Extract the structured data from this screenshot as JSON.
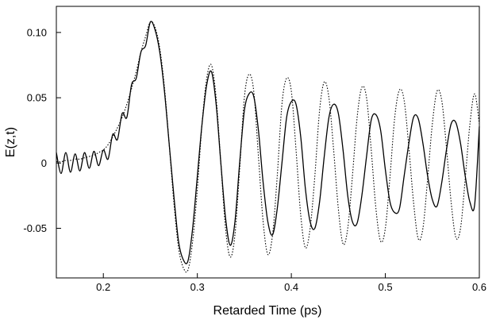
{
  "chart_data": {
    "type": "line",
    "title": "",
    "xlabel": "Retarded Time (ps)",
    "ylabel": "E(z,t)",
    "xlim": [
      0.15,
      0.6
    ],
    "ylim": [
      -0.088,
      0.12
    ],
    "grid": false,
    "legend": "none",
    "x_ticks": [
      {
        "value": 0.2,
        "label": "0.2"
      },
      {
        "value": 0.3,
        "label": "0.3"
      },
      {
        "value": 0.4,
        "label": "0.4"
      },
      {
        "value": 0.5,
        "label": "0.5"
      },
      {
        "value": 0.6,
        "label": "0.6"
      }
    ],
    "y_ticks": [
      {
        "value": 0.1,
        "label": "0.10"
      },
      {
        "value": 0.05,
        "label": "0.05"
      },
      {
        "value": 0,
        "label": "0"
      },
      {
        "value": -0.05,
        "label": "-0.05"
      }
    ],
    "series": [
      {
        "style": "solid",
        "color": "#000000",
        "x": [
          0.15,
          0.155,
          0.16,
          0.165,
          0.17,
          0.175,
          0.18,
          0.185,
          0.19,
          0.195,
          0.2,
          0.205,
          0.21,
          0.215,
          0.22,
          0.225,
          0.23,
          0.235,
          0.24,
          0.245,
          0.25,
          0.255,
          0.26,
          0.265,
          0.27,
          0.275,
          0.28,
          0.285,
          0.29,
          0.295,
          0.3,
          0.305,
          0.31,
          0.315,
          0.32,
          0.325,
          0.33,
          0.335,
          0.34,
          0.345,
          0.35,
          0.355,
          0.36,
          0.365,
          0.37,
          0.375,
          0.38,
          0.385,
          0.39,
          0.395,
          0.4,
          0.405,
          0.41,
          0.415,
          0.42,
          0.425,
          0.43,
          0.435,
          0.44,
          0.445,
          0.45,
          0.455,
          0.46,
          0.465,
          0.47,
          0.475,
          0.48,
          0.485,
          0.49,
          0.495,
          0.5,
          0.505,
          0.51,
          0.515,
          0.52,
          0.525,
          0.53,
          0.535,
          0.54,
          0.545,
          0.55,
          0.555,
          0.56,
          0.565,
          0.57,
          0.575,
          0.58,
          0.585,
          0.59,
          0.595,
          0.6
        ],
        "y": [
          0.008,
          -0.008,
          0.008,
          -0.007,
          0.007,
          -0.006,
          0.008,
          -0.004,
          0.009,
          -0.002,
          0.01,
          0.003,
          0.022,
          0.018,
          0.038,
          0.035,
          0.06,
          0.065,
          0.085,
          0.09,
          0.108,
          0.102,
          0.085,
          0.055,
          0.015,
          -0.025,
          -0.06,
          -0.074,
          -0.075,
          -0.05,
          -0.01,
          0.03,
          0.06,
          0.07,
          0.045,
          0.0,
          -0.042,
          -0.063,
          -0.045,
          0.0,
          0.04,
          0.053,
          0.051,
          0.025,
          -0.015,
          -0.045,
          -0.055,
          -0.035,
          0.0,
          0.035,
          0.047,
          0.045,
          0.02,
          -0.02,
          -0.045,
          -0.05,
          -0.03,
          0.005,
          0.035,
          0.045,
          0.038,
          0.01,
          -0.025,
          -0.045,
          -0.046,
          -0.025,
          0.005,
          0.033,
          0.037,
          0.025,
          -0.005,
          -0.03,
          -0.038,
          -0.035,
          -0.01,
          0.015,
          0.035,
          0.034,
          0.015,
          -0.01,
          -0.028,
          -0.033,
          -0.015,
          0.01,
          0.03,
          0.031,
          0.015,
          -0.01,
          -0.03,
          -0.032,
          0.028
        ]
      },
      {
        "style": "dotted",
        "color": "#000000",
        "x": [
          0.15,
          0.155,
          0.16,
          0.165,
          0.17,
          0.175,
          0.18,
          0.185,
          0.19,
          0.195,
          0.2,
          0.205,
          0.21,
          0.215,
          0.22,
          0.225,
          0.23,
          0.235,
          0.24,
          0.245,
          0.25,
          0.255,
          0.26,
          0.265,
          0.27,
          0.275,
          0.28,
          0.285,
          0.29,
          0.295,
          0.3,
          0.305,
          0.31,
          0.315,
          0.32,
          0.325,
          0.33,
          0.335,
          0.34,
          0.345,
          0.35,
          0.355,
          0.36,
          0.365,
          0.37,
          0.375,
          0.38,
          0.385,
          0.39,
          0.395,
          0.4,
          0.405,
          0.41,
          0.415,
          0.42,
          0.425,
          0.43,
          0.435,
          0.44,
          0.445,
          0.45,
          0.455,
          0.46,
          0.465,
          0.47,
          0.475,
          0.48,
          0.485,
          0.49,
          0.495,
          0.5,
          0.505,
          0.51,
          0.515,
          0.52,
          0.525,
          0.53,
          0.535,
          0.54,
          0.545,
          0.55,
          0.555,
          0.56,
          0.565,
          0.57,
          0.575,
          0.58,
          0.585,
          0.59,
          0.595,
          0.6
        ],
        "y": [
          0.001,
          0.001,
          0.002,
          0.002,
          0.003,
          0.003,
          0.004,
          0.005,
          0.006,
          0.008,
          0.01,
          0.014,
          0.02,
          0.027,
          0.035,
          0.045,
          0.057,
          0.07,
          0.085,
          0.097,
          0.108,
          0.104,
          0.088,
          0.058,
          0.015,
          -0.03,
          -0.065,
          -0.08,
          -0.082,
          -0.06,
          -0.02,
          0.03,
          0.065,
          0.075,
          0.05,
          0.0,
          -0.05,
          -0.072,
          -0.055,
          -0.005,
          0.05,
          0.068,
          0.055,
          0.005,
          -0.045,
          -0.07,
          -0.055,
          -0.01,
          0.045,
          0.065,
          0.055,
          0.01,
          -0.04,
          -0.065,
          -0.05,
          -0.01,
          0.04,
          0.062,
          0.05,
          0.01,
          -0.035,
          -0.062,
          -0.05,
          -0.01,
          0.035,
          0.058,
          0.05,
          0.01,
          -0.035,
          -0.06,
          -0.05,
          -0.01,
          0.035,
          0.056,
          0.048,
          0.012,
          -0.03,
          -0.058,
          -0.05,
          -0.012,
          0.03,
          0.055,
          0.048,
          0.012,
          -0.03,
          -0.057,
          -0.05,
          -0.012,
          0.03,
          0.053,
          0.03
        ]
      }
    ]
  }
}
